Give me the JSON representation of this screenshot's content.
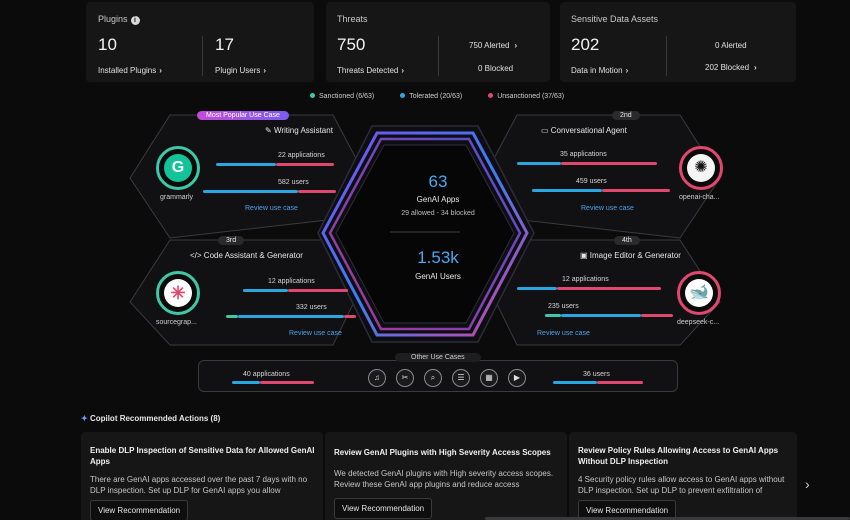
{
  "stats": {
    "plugins": {
      "title": "Plugins",
      "installed_value": "10",
      "installed_label": "Installed Plugins",
      "users_value": "17",
      "users_label": "Plugin Users"
    },
    "threats": {
      "title": "Threats",
      "detected_value": "750",
      "detected_label": "Threats Detected",
      "alerted_label": "750 Alerted",
      "blocked_label": "0 Blocked"
    },
    "sensitive": {
      "title": "Sensitive Data Assets",
      "motion_value": "202",
      "motion_label": "Data in Motion",
      "alerted_label": "0 Alerted",
      "blocked_label": "202 Blocked"
    }
  },
  "legend": [
    {
      "label": "Sanctioned (6/63)",
      "color": "#3fc7a6"
    },
    {
      "label": "Tolerated (20/63)",
      "color": "#2aa6e0"
    },
    {
      "label": "Unsanctioned (37/63)",
      "color": "#e2476f"
    }
  ],
  "center": {
    "apps_value": "63",
    "apps_label": "GenAI Apps",
    "apps_sub": "29 allowed - 34 blocked",
    "users_value": "1.53k",
    "users_label": "GenAI Users"
  },
  "use_cases": {
    "writing": {
      "badge": "Most Popular Use Case",
      "title": "Writing Assistant",
      "apps": "22 applications",
      "users": "582 users",
      "link": "Review use case",
      "app": "grammarly"
    },
    "conversational": {
      "badge": "2nd",
      "title": "Conversational Agent",
      "apps": "35 applications",
      "users": "459 users",
      "link": "Review use case",
      "app": "openai-cha..."
    },
    "code": {
      "badge": "3rd",
      "title": "Code Assistant & Generator",
      "apps": "12 applications",
      "users": "332 users",
      "link": "Review use case",
      "app": "sourcegrap..."
    },
    "image": {
      "badge": "4th",
      "title": "Image Editor & Generator",
      "apps": "12 applications",
      "users": "235 users",
      "link": "Review use case",
      "app": "deepseek-c..."
    }
  },
  "other_use_cases": {
    "title": "Other Use Cases",
    "apps": "40 applications",
    "users": "36 users",
    "icons": [
      "music-icon",
      "tools-icon",
      "search-icon",
      "list-icon",
      "calendar-icon",
      "video-icon"
    ]
  },
  "copilot": {
    "title": "Copilot Recommended Actions (8)",
    "cards": [
      {
        "title": "Enable DLP Inspection of Sensitive Data for Allowed GenAI Apps",
        "body": "There are GenAI apps accessed over the past 7 days with no DLP inspection. Set up DLP for GenAI apps you allow",
        "button": "View Recommendation"
      },
      {
        "title": "Review GenAI Plugins with High Severity Access Scopes",
        "body": "We detected GenAI plugins with High severity access scopes. Review these GenAI app plugins and reduce access",
        "button": "View Recommendation"
      },
      {
        "title": "Review Policy Rules Allowing Access to GenAI Apps Without DLP Inspection",
        "body": "4 Security policy rules allow access to GenAI apps without DLP inspection. Set up DLP to prevent exfiltration of",
        "button": "View Recommendation"
      }
    ]
  }
}
